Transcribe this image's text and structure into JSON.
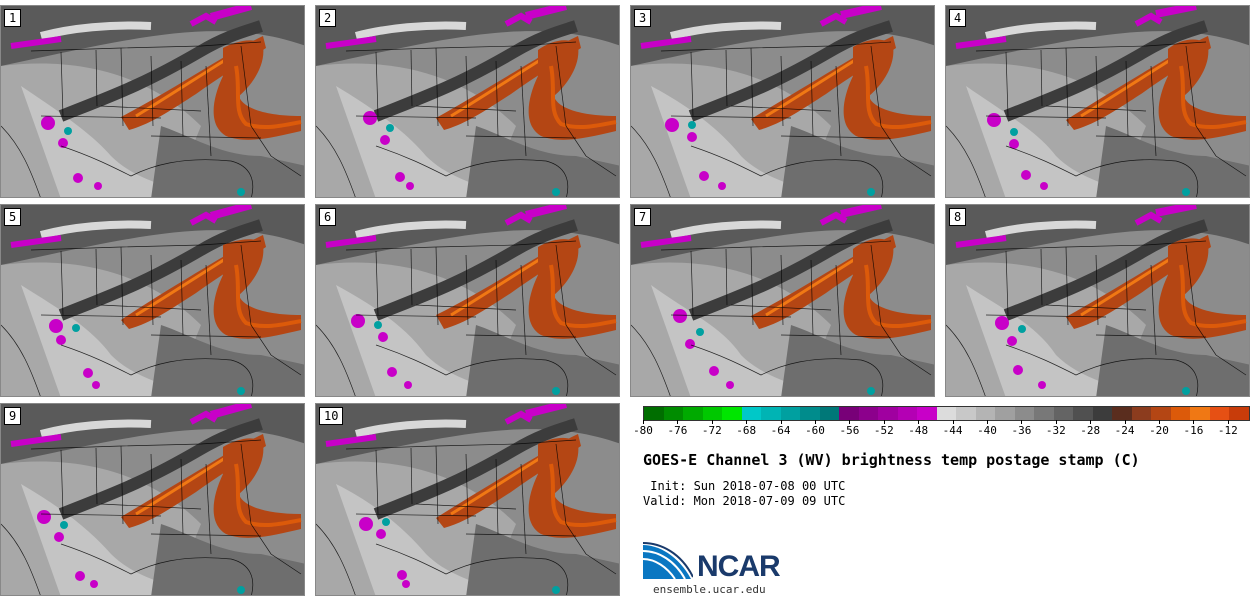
{
  "panels": [
    {
      "label": "1"
    },
    {
      "label": "2"
    },
    {
      "label": "3"
    },
    {
      "label": "4"
    },
    {
      "label": "5"
    },
    {
      "label": "6"
    },
    {
      "label": "7"
    },
    {
      "label": "8"
    },
    {
      "label": "9"
    },
    {
      "label": "10"
    }
  ],
  "colorbar": {
    "colors": [
      "#006e00",
      "#008c00",
      "#00aa00",
      "#00c800",
      "#00e600",
      "#00c8c8",
      "#00b4b4",
      "#00a0a0",
      "#008c8c",
      "#007878",
      "#780078",
      "#8c008c",
      "#a000a0",
      "#b400b4",
      "#c800c8",
      "#dcdcdc",
      "#c8c8c8",
      "#b4b4b4",
      "#a0a0a0",
      "#8c8c8c",
      "#787878",
      "#646464",
      "#505050",
      "#3c3c3c",
      "#5a2d1e",
      "#8c3c1e",
      "#b44614",
      "#dc5a0a",
      "#f07814",
      "#e65014",
      "#c83c0a"
    ],
    "ticks": [
      "-80",
      "-76",
      "-72",
      "-68",
      "-64",
      "-60",
      "-56",
      "-52",
      "-48",
      "-44",
      "-40",
      "-36",
      "-32",
      "-28",
      "-24",
      "-20",
      "-16",
      "-12"
    ]
  },
  "title": "GOES-E Channel 3 (WV) brightness temp postage stamp (C)",
  "init": " Init: Sun 2018-07-08 00 UTC",
  "valid": "Valid: Mon 2018-07-09 09 UTC",
  "logo": {
    "text": "NCAR",
    "url": "ensemble.ucar.edu"
  }
}
